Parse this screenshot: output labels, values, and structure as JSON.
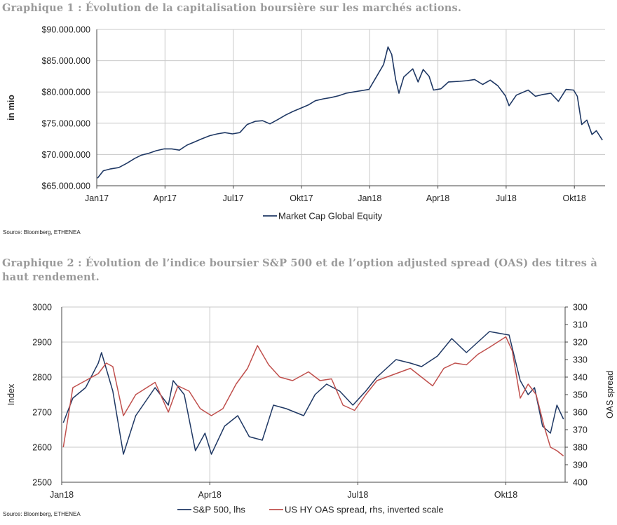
{
  "captions": {
    "chart1": "Graphique 1 : Évolution de la capitalisation boursière sur les marchés actions.",
    "chart2": "Graphique 2 : Évolution de l’indice boursier S&P 500 et de l’option adjusted spread (OAS) des titres à haut rendement."
  },
  "sources": {
    "chart1": "Source: Bloomberg, ETHENEA",
    "chart2": "Source: Bloomberg, ETHENEA"
  },
  "chart_data": [
    {
      "type": "line",
      "title": "",
      "xlabel": "",
      "ylabel": "in mio",
      "x_ticks": [
        "Jan17",
        "Apr17",
        "Jul17",
        "Okt17",
        "Jan18",
        "Apr18",
        "Jul18",
        "Okt18"
      ],
      "y_ticks": [
        "$65.000.000",
        "$70.000.000",
        "$75.000.000",
        "$80.000.000",
        "$85.000.000",
        "$90.000.000"
      ],
      "ylim": [
        65000000,
        90000000
      ],
      "x_range_months": [
        "Jan17",
        "Nov18"
      ],
      "grid": true,
      "legend_position": "bottom",
      "series": [
        {
          "name": "Market Cap Global Equity",
          "color": "#1f3864",
          "points": [
            [
              "2017-01-02",
              66200000
            ],
            [
              "2017-01-10",
              67400000
            ],
            [
              "2017-01-20",
              67700000
            ],
            [
              "2017-01-31",
              67900000
            ],
            [
              "2017-02-10",
              68600000
            ],
            [
              "2017-02-20",
              69400000
            ],
            [
              "2017-02-28",
              69900000
            ],
            [
              "2017-03-10",
              70200000
            ],
            [
              "2017-03-20",
              70600000
            ],
            [
              "2017-03-31",
              70900000
            ],
            [
              "2017-04-10",
              70900000
            ],
            [
              "2017-04-20",
              70700000
            ],
            [
              "2017-04-30",
              71500000
            ],
            [
              "2017-05-10",
              72000000
            ],
            [
              "2017-05-20",
              72500000
            ],
            [
              "2017-05-31",
              73000000
            ],
            [
              "2017-06-10",
              73300000
            ],
            [
              "2017-06-20",
              73500000
            ],
            [
              "2017-06-30",
              73300000
            ],
            [
              "2017-07-10",
              73500000
            ],
            [
              "2017-07-20",
              74800000
            ],
            [
              "2017-07-31",
              75300000
            ],
            [
              "2017-08-10",
              75400000
            ],
            [
              "2017-08-20",
              74900000
            ],
            [
              "2017-08-31",
              75600000
            ],
            [
              "2017-09-10",
              76300000
            ],
            [
              "2017-09-20",
              76900000
            ],
            [
              "2017-09-30",
              77400000
            ],
            [
              "2017-10-10",
              77900000
            ],
            [
              "2017-10-20",
              78600000
            ],
            [
              "2017-10-31",
              78900000
            ],
            [
              "2017-11-10",
              79100000
            ],
            [
              "2017-11-20",
              79400000
            ],
            [
              "2017-11-30",
              79800000
            ],
            [
              "2017-12-10",
              80000000
            ],
            [
              "2017-12-20",
              80200000
            ],
            [
              "2017-12-31",
              80400000
            ],
            [
              "2018-01-10",
              82400000
            ],
            [
              "2018-01-20",
              84400000
            ],
            [
              "2018-01-26",
              87200000
            ],
            [
              "2018-01-31",
              86000000
            ],
            [
              "2018-02-05",
              82000000
            ],
            [
              "2018-02-09",
              79800000
            ],
            [
              "2018-02-15",
              82400000
            ],
            [
              "2018-02-26",
              83700000
            ],
            [
              "2018-03-05",
              81600000
            ],
            [
              "2018-03-12",
              83600000
            ],
            [
              "2018-03-20",
              82500000
            ],
            [
              "2018-03-26",
              80300000
            ],
            [
              "2018-04-05",
              80500000
            ],
            [
              "2018-04-15",
              81600000
            ],
            [
              "2018-04-30",
              81700000
            ],
            [
              "2018-05-10",
              81800000
            ],
            [
              "2018-05-20",
              82000000
            ],
            [
              "2018-05-31",
              81200000
            ],
            [
              "2018-06-10",
              81900000
            ],
            [
              "2018-06-20",
              81000000
            ],
            [
              "2018-06-30",
              79400000
            ],
            [
              "2018-07-05",
              77800000
            ],
            [
              "2018-07-15",
              79500000
            ],
            [
              "2018-07-31",
              80300000
            ],
            [
              "2018-08-10",
              79300000
            ],
            [
              "2018-08-20",
              79600000
            ],
            [
              "2018-08-31",
              79800000
            ],
            [
              "2018-09-10",
              78500000
            ],
            [
              "2018-09-20",
              80400000
            ],
            [
              "2018-09-30",
              80300000
            ],
            [
              "2018-10-05",
              79300000
            ],
            [
              "2018-10-11",
              74800000
            ],
            [
              "2018-10-18",
              75500000
            ],
            [
              "2018-10-25",
              73200000
            ],
            [
              "2018-10-31",
              73800000
            ],
            [
              "2018-11-08",
              72300000
            ]
          ]
        }
      ]
    },
    {
      "type": "line",
      "title": "",
      "xlabel": "",
      "ylabel": "Index",
      "y2label": "OAS spread",
      "x_ticks": [
        "Jan18",
        "Apr18",
        "Jul18",
        "Okt18"
      ],
      "y_ticks": [
        "2500",
        "2600",
        "2700",
        "2800",
        "2900",
        "3000"
      ],
      "y2_ticks": [
        "300",
        "310",
        "320",
        "330",
        "340",
        "350",
        "360",
        "370",
        "380",
        "390",
        "400"
      ],
      "ylim": [
        2500,
        3000
      ],
      "y2lim_inverted": [
        400,
        300
      ],
      "grid": true,
      "legend_position": "bottom",
      "series": [
        {
          "name": "S&P 500, lhs",
          "color": "#1f3864",
          "axis": "left",
          "points": [
            [
              "2018-01-02",
              2670
            ],
            [
              "2018-01-08",
              2740
            ],
            [
              "2018-01-16",
              2770
            ],
            [
              "2018-01-24",
              2840
            ],
            [
              "2018-01-26",
              2870
            ],
            [
              "2018-02-02",
              2760
            ],
            [
              "2018-02-08",
              2580
            ],
            [
              "2018-02-15",
              2690
            ],
            [
              "2018-02-26",
              2770
            ],
            [
              "2018-03-06",
              2720
            ],
            [
              "2018-03-09",
              2790
            ],
            [
              "2018-03-16",
              2750
            ],
            [
              "2018-03-23",
              2590
            ],
            [
              "2018-03-29",
              2640
            ],
            [
              "2018-04-02",
              2580
            ],
            [
              "2018-04-10",
              2660
            ],
            [
              "2018-04-18",
              2690
            ],
            [
              "2018-04-25",
              2630
            ],
            [
              "2018-05-03",
              2620
            ],
            [
              "2018-05-10",
              2720
            ],
            [
              "2018-05-18",
              2710
            ],
            [
              "2018-05-29",
              2690
            ],
            [
              "2018-06-05",
              2750
            ],
            [
              "2018-06-12",
              2780
            ],
            [
              "2018-06-20",
              2760
            ],
            [
              "2018-06-28",
              2720
            ],
            [
              "2018-07-06",
              2760
            ],
            [
              "2018-07-13",
              2800
            ],
            [
              "2018-07-25",
              2850
            ],
            [
              "2018-08-03",
              2840
            ],
            [
              "2018-08-10",
              2830
            ],
            [
              "2018-08-20",
              2860
            ],
            [
              "2018-08-29",
              2910
            ],
            [
              "2018-09-07",
              2870
            ],
            [
              "2018-09-14",
              2900
            ],
            [
              "2018-09-21",
              2930
            ],
            [
              "2018-10-03",
              2920
            ],
            [
              "2018-10-10",
              2790
            ],
            [
              "2018-10-15",
              2750
            ],
            [
              "2018-10-19",
              2770
            ],
            [
              "2018-10-24",
              2660
            ],
            [
              "2018-10-29",
              2640
            ],
            [
              "2018-11-02",
              2720
            ],
            [
              "2018-11-06",
              2680
            ]
          ]
        },
        {
          "name": "US HY OAS spread, rhs, inverted scale",
          "color": "#c0504d",
          "axis": "right",
          "points": [
            [
              "2018-01-02",
              380
            ],
            [
              "2018-01-08",
              346
            ],
            [
              "2018-01-16",
              342
            ],
            [
              "2018-01-24",
              338
            ],
            [
              "2018-01-29",
              332
            ],
            [
              "2018-02-02",
              334
            ],
            [
              "2018-02-08",
              362
            ],
            [
              "2018-02-15",
              350
            ],
            [
              "2018-02-26",
              343
            ],
            [
              "2018-03-06",
              360
            ],
            [
              "2018-03-12",
              345
            ],
            [
              "2018-03-19",
              348
            ],
            [
              "2018-03-26",
              358
            ],
            [
              "2018-04-02",
              362
            ],
            [
              "2018-04-09",
              358
            ],
            [
              "2018-04-17",
              344
            ],
            [
              "2018-04-24",
              335
            ],
            [
              "2018-04-30",
              322
            ],
            [
              "2018-05-07",
              333
            ],
            [
              "2018-05-14",
              340
            ],
            [
              "2018-05-22",
              342
            ],
            [
              "2018-06-01",
              337
            ],
            [
              "2018-06-08",
              342
            ],
            [
              "2018-06-15",
              341
            ],
            [
              "2018-06-22",
              356
            ],
            [
              "2018-06-29",
              359
            ],
            [
              "2018-07-06",
              350
            ],
            [
              "2018-07-13",
              342
            ],
            [
              "2018-07-25",
              338
            ],
            [
              "2018-08-03",
              335
            ],
            [
              "2018-08-10",
              340
            ],
            [
              "2018-08-17",
              345
            ],
            [
              "2018-08-24",
              335
            ],
            [
              "2018-08-31",
              332
            ],
            [
              "2018-09-07",
              333
            ],
            [
              "2018-09-14",
              327
            ],
            [
              "2018-09-21",
              323
            ],
            [
              "2018-10-01",
              317
            ],
            [
              "2018-10-05",
              325
            ],
            [
              "2018-10-10",
              352
            ],
            [
              "2018-10-15",
              344
            ],
            [
              "2018-10-20",
              350
            ],
            [
              "2018-10-25",
              368
            ],
            [
              "2018-10-29",
              380
            ],
            [
              "2018-11-02",
              382
            ],
            [
              "2018-11-06",
              385
            ]
          ]
        }
      ]
    }
  ]
}
